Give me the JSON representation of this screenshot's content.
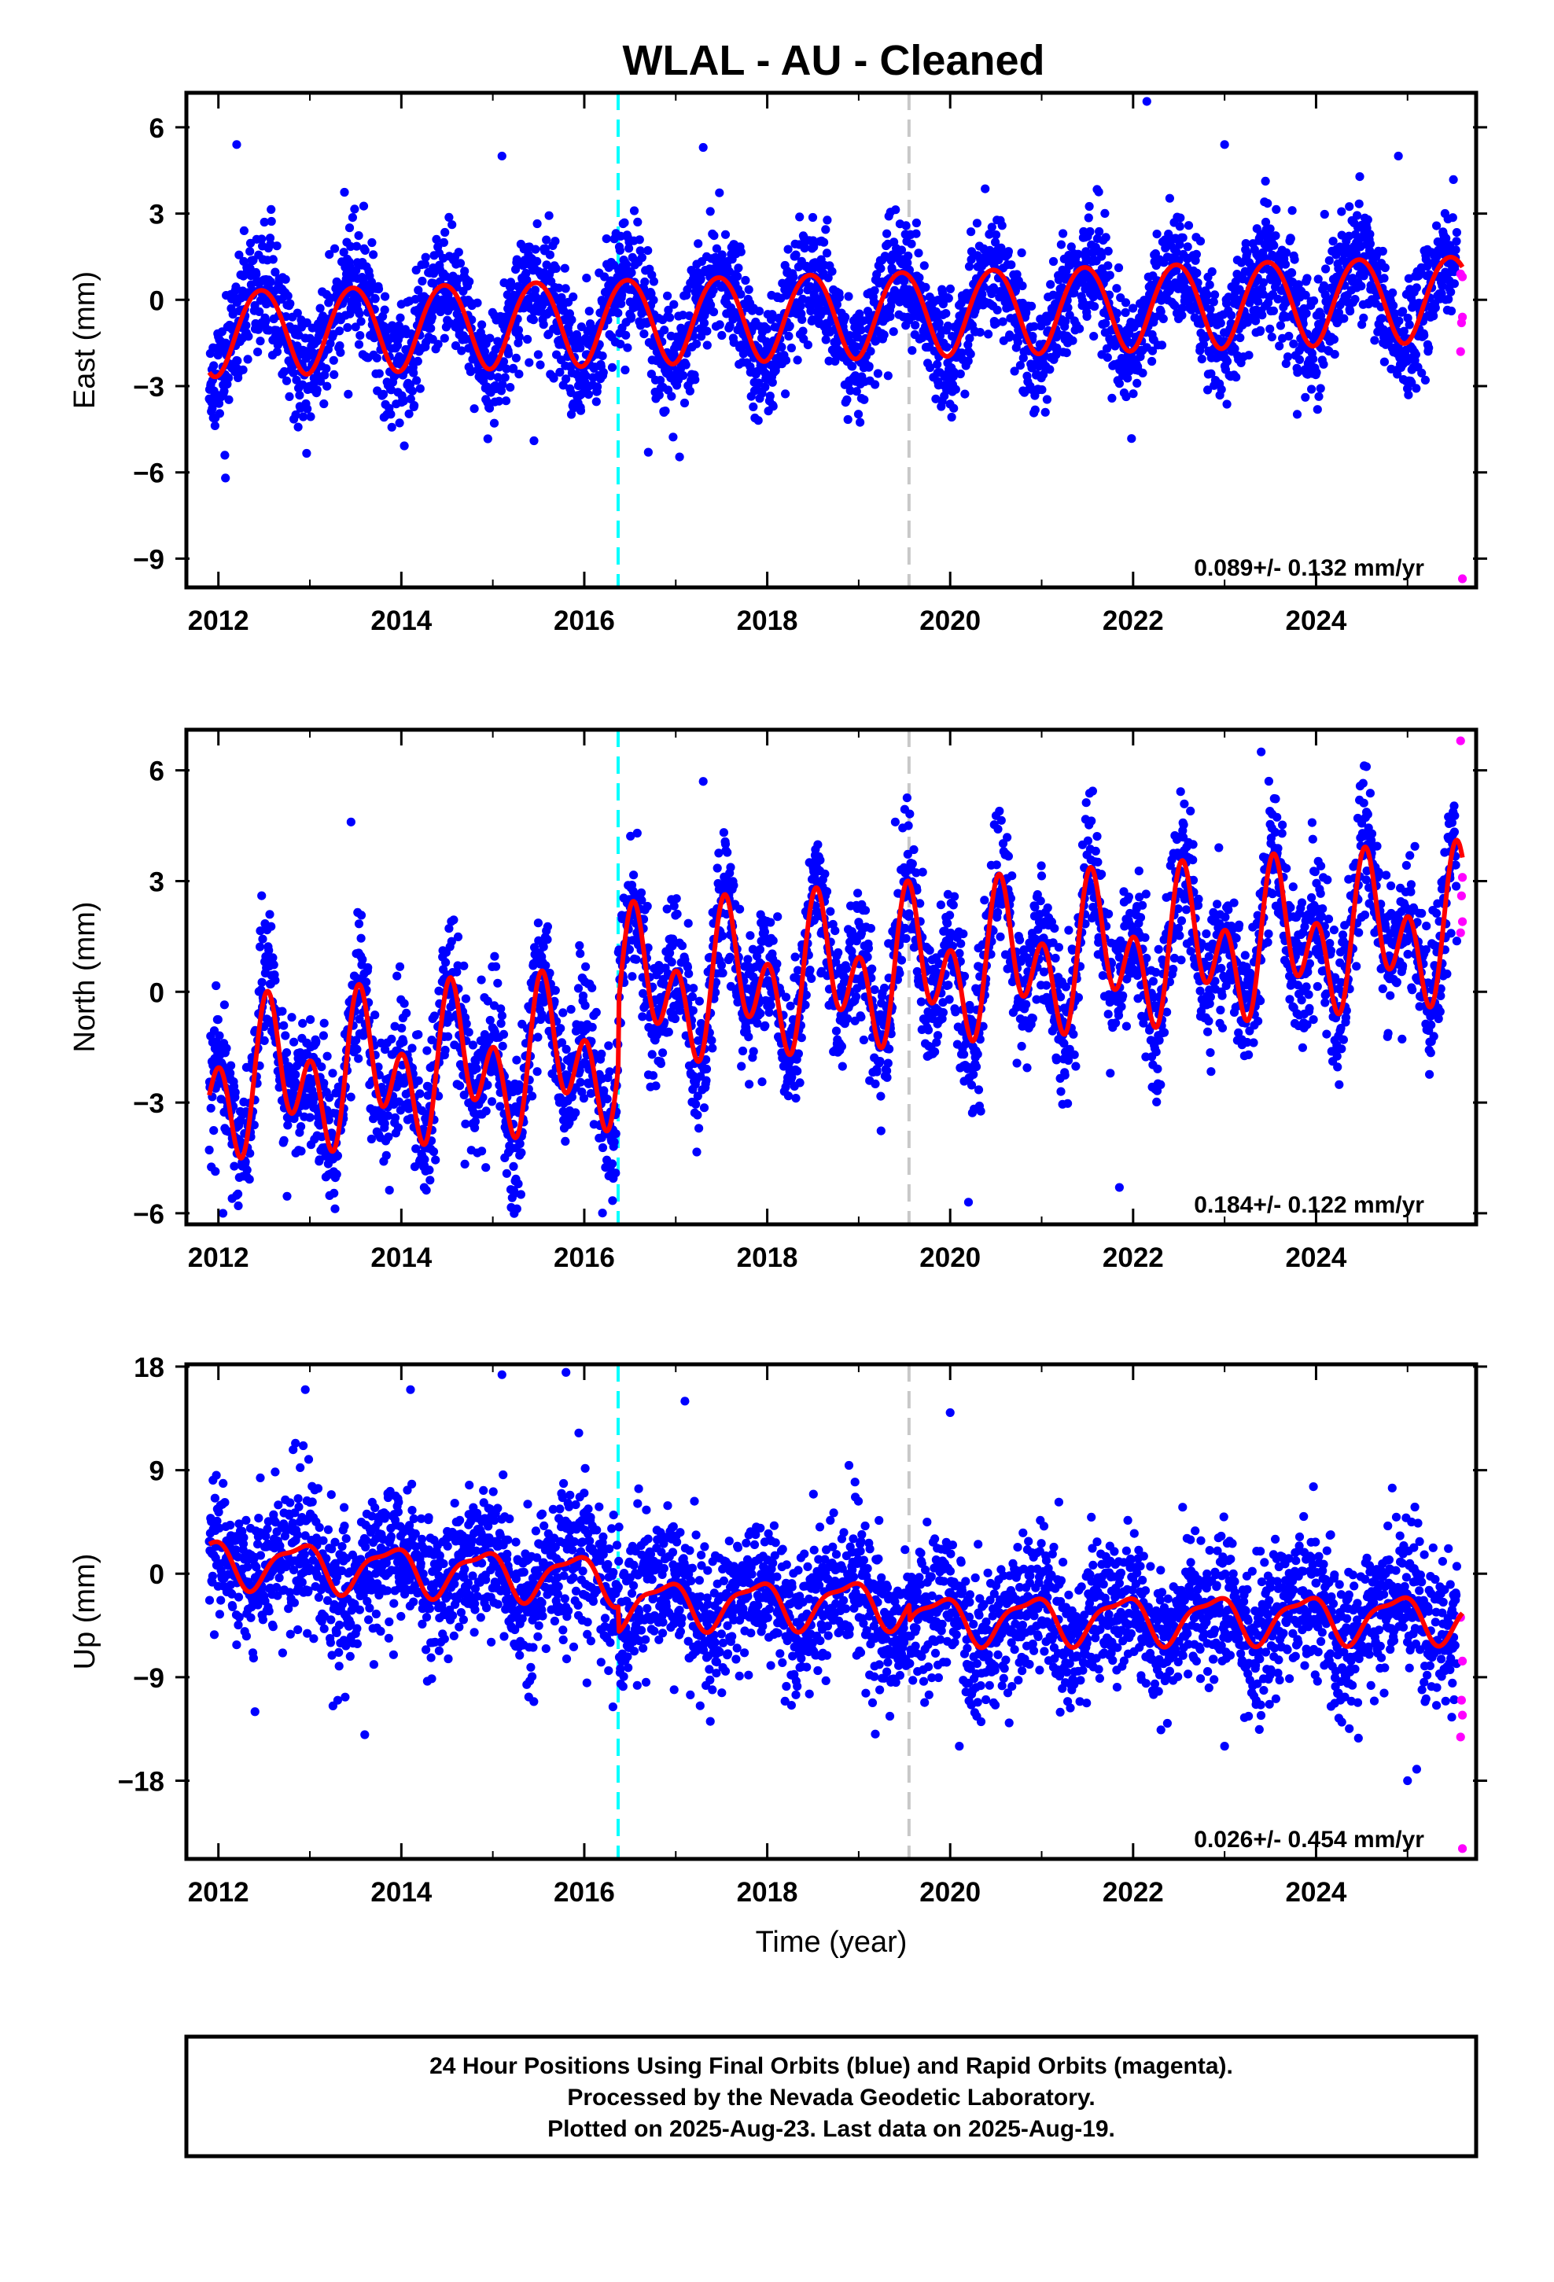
{
  "title": "WLAL  - AU - Cleaned",
  "colors": {
    "final_orbits": "#0000ff",
    "rapid_orbits": "#ff00ff",
    "model": "#ff0000",
    "event_antenna": "#00ffff",
    "event_other": "#c8c8c8"
  },
  "footer": {
    "line1": "24 Hour Positions Using Final Orbits (blue) and Rapid Orbits (magenta).",
    "line2": "Processed by the Nevada Geodetic Laboratory.",
    "line3": "Plotted on 2025-Aug-23. Last data on 2025-Aug-19."
  },
  "chart_data": [
    {
      "type": "scatter",
      "ylabel": "East (mm)",
      "xlabel": "",
      "xlim": [
        2011.65,
        2025.75
      ],
      "ylim": [
        -10,
        7.2
      ],
      "x_ticks": [
        2012,
        2014,
        2016,
        2018,
        2020,
        2022,
        2024
      ],
      "y_ticks": [
        -9,
        -6,
        -3,
        0,
        3,
        6
      ],
      "y_tick_labels": [
        "−9",
        "−6",
        "−3",
        "0",
        "3",
        "6"
      ],
      "rate": "0.089+/- 0.132 mm/yr",
      "event_lines": [
        2016.37,
        2019.55
      ],
      "model": {
        "start": 2011.9,
        "end": 2025.6,
        "trend": 0.089,
        "offset": -0.55,
        "annual_cos": -1.45,
        "annual_sin": 0.3,
        "semi_cos": -0.1,
        "semi_sin": 0.05
      },
      "scatter_seed": 11,
      "noise_sd": 1.05,
      "rapid_points": [
        {
          "x": 2025.58,
          "y": 0.9
        },
        {
          "x": 2025.6,
          "y": 0.8
        },
        {
          "x": 2025.59,
          "y": -0.8
        },
        {
          "x": 2025.6,
          "y": -0.6
        },
        {
          "x": 2025.58,
          "y": -1.8
        },
        {
          "x": 2025.6,
          "y": -9.7
        }
      ],
      "notable_points": [
        {
          "x": 2022.15,
          "y": 6.9
        },
        {
          "x": 2012.2,
          "y": 5.4
        },
        {
          "x": 2015.1,
          "y": 5.0
        },
        {
          "x": 2017.3,
          "y": 5.3
        },
        {
          "x": 2023.0,
          "y": 5.4
        },
        {
          "x": 2024.9,
          "y": 5.0
        },
        {
          "x": 2016.7,
          "y": -5.3
        },
        {
          "x": 2015.45,
          "y": -4.9
        }
      ]
    },
    {
      "type": "scatter",
      "ylabel": "North (mm)",
      "xlabel": "",
      "xlim": [
        2011.65,
        2025.75
      ],
      "ylim": [
        -6.3,
        7.1
      ],
      "x_ticks": [
        2012,
        2014,
        2016,
        2018,
        2020,
        2022,
        2024
      ],
      "y_ticks": [
        -6,
        -3,
        0,
        3,
        6
      ],
      "y_tick_labels": [
        "−6",
        "−3",
        "0",
        "3",
        "6"
      ],
      "rate": "0.184+/- 0.122 mm/yr",
      "event_lines": [
        2016.37,
        2019.55
      ],
      "model": {
        "start": 2011.9,
        "end": 2025.6,
        "trend": 0.184,
        "offset": -1.4,
        "annual_cos": -0.9,
        "annual_sin": -0.7,
        "semi_cos": 1.35,
        "semi_sin": 0.4,
        "steps": [
          {
            "at": 2016.37,
            "size": 1.7
          }
        ]
      },
      "scatter_seed": 23,
      "noise_sd": 0.95,
      "rapid_points": [
        {
          "x": 2025.58,
          "y": 6.8
        },
        {
          "x": 2025.6,
          "y": 3.1
        },
        {
          "x": 2025.59,
          "y": 2.6
        },
        {
          "x": 2025.6,
          "y": 1.9
        },
        {
          "x": 2025.58,
          "y": 1.6
        }
      ],
      "notable_points": [
        {
          "x": 2023.4,
          "y": 6.5
        },
        {
          "x": 2024.55,
          "y": 6.1
        },
        {
          "x": 2017.3,
          "y": 5.7
        },
        {
          "x": 2019.4,
          "y": 4.6
        },
        {
          "x": 2013.45,
          "y": 4.6
        },
        {
          "x": 2012.05,
          "y": -6.0
        },
        {
          "x": 2012.15,
          "y": -5.6
        },
        {
          "x": 2020.2,
          "y": -5.7
        },
        {
          "x": 2014.25,
          "y": -5.3
        },
        {
          "x": 2021.85,
          "y": -5.3
        }
      ]
    },
    {
      "type": "scatter",
      "ylabel": "Up (mm)",
      "xlabel": "Time (year)",
      "xlim": [
        2011.65,
        2025.75
      ],
      "ylim": [
        -24.8,
        18.2
      ],
      "x_ticks": [
        2012,
        2014,
        2016,
        2018,
        2020,
        2022,
        2024
      ],
      "y_ticks": [
        -18,
        -9,
        0,
        9,
        18
      ],
      "y_tick_labels": [
        "−18",
        "−9",
        "0",
        "9",
        "18"
      ],
      "rate": "0.026+/- 0.454 mm/yr",
      "event_lines": [
        2016.37,
        2019.55
      ],
      "model": {
        "start": 2011.9,
        "end": 2025.6,
        "trend": 0.026,
        "offset": -0.4,
        "annual_cos": 1.3,
        "annual_sin": -1.4,
        "semi_cos": 0.4,
        "semi_sin": 0.5,
        "steps": [
          {
            "at": 2016.37,
            "size": -2.2
          },
          {
            "at": 2019.55,
            "size": -1.4
          }
        ],
        "pre_ramp": {
          "start": 2012.0,
          "end": 2016.37,
          "from": 1.6,
          "to": 0.0
        }
      },
      "scatter_seed": 37,
      "noise_sd": 3.2,
      "rapid_points": [
        {
          "x": 2025.58,
          "y": -3.8
        },
        {
          "x": 2025.6,
          "y": -7.6
        },
        {
          "x": 2025.59,
          "y": -11.0
        },
        {
          "x": 2025.6,
          "y": -12.3
        },
        {
          "x": 2025.58,
          "y": -14.2
        },
        {
          "x": 2025.6,
          "y": -23.9
        }
      ],
      "notable_points": [
        {
          "x": 2015.1,
          "y": 17.3
        },
        {
          "x": 2015.8,
          "y": 17.5
        },
        {
          "x": 2014.1,
          "y": 16.0
        },
        {
          "x": 2012.95,
          "y": 16.0
        },
        {
          "x": 2017.1,
          "y": 15.0
        },
        {
          "x": 2020.0,
          "y": 14.0
        },
        {
          "x": 2025.1,
          "y": -17.0
        },
        {
          "x": 2025.0,
          "y": -18.0
        },
        {
          "x": 2013.6,
          "y": -14.0
        },
        {
          "x": 2020.1,
          "y": -15.0
        },
        {
          "x": 2023.0,
          "y": -15.0
        },
        {
          "x": 2012.4,
          "y": -12.0
        }
      ]
    }
  ]
}
